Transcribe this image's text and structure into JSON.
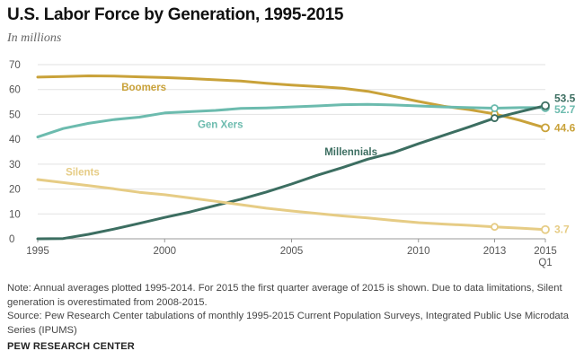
{
  "header": {
    "title": "U.S. Labor Force by Generation, 1995-2015",
    "subtitle": "In millions"
  },
  "chart_data": {
    "type": "line",
    "title": "U.S. Labor Force by Generation, 1995-2015",
    "subtitle": "In millions",
    "xlabel": "",
    "ylabel": "",
    "ylim": [
      0,
      70
    ],
    "xlim": [
      1995,
      2015
    ],
    "yticks": [
      0,
      10,
      20,
      30,
      40,
      50,
      60,
      70
    ],
    "xticks": [
      {
        "value": 1995,
        "label": "1995"
      },
      {
        "value": 2000,
        "label": "2000"
      },
      {
        "value": 2005,
        "label": "2005"
      },
      {
        "value": 2010,
        "label": "2010"
      },
      {
        "value": 2013,
        "label": "2013"
      },
      {
        "value": 2015,
        "label": "2015",
        "sublabel": "Q1"
      }
    ],
    "grid": true,
    "x": [
      1995,
      1996,
      1997,
      1998,
      1999,
      2000,
      2001,
      2002,
      2003,
      2004,
      2005,
      2006,
      2007,
      2008,
      2009,
      2010,
      2011,
      2012,
      2013,
      2014,
      2015
    ],
    "series": [
      {
        "name": "Boomers",
        "color": "#c9a23a",
        "values": [
          65.0,
          65.2,
          65.5,
          65.4,
          65.1,
          64.8,
          64.4,
          63.9,
          63.4,
          62.5,
          61.8,
          61.2,
          60.5,
          59.3,
          57.3,
          55.2,
          53.3,
          51.9,
          50.2,
          47.6,
          44.6
        ],
        "end_label": "44.6"
      },
      {
        "name": "Gen Xers",
        "color": "#6cbbae",
        "values": [
          40.9,
          44.3,
          46.4,
          47.9,
          48.9,
          50.6,
          51.1,
          51.6,
          52.4,
          52.6,
          53.0,
          53.4,
          53.9,
          54.0,
          53.8,
          53.4,
          53.0,
          52.7,
          52.5,
          52.7,
          52.7
        ],
        "end_label": "52.7"
      },
      {
        "name": "Millennials",
        "color": "#3c6e61",
        "values": [
          0,
          0.1,
          1.8,
          3.9,
          6.2,
          8.6,
          10.8,
          13.4,
          15.9,
          18.8,
          22.0,
          25.5,
          28.6,
          32.0,
          34.6,
          38.2,
          41.6,
          45.0,
          48.5,
          51.1,
          53.5
        ],
        "end_label": "53.5"
      },
      {
        "name": "Silents",
        "color": "#e6cc85",
        "values": [
          23.8,
          22.6,
          21.4,
          20.1,
          18.7,
          17.7,
          16.4,
          15.1,
          13.7,
          12.3,
          11.2,
          10.2,
          9.2,
          8.4,
          7.4,
          6.5,
          5.9,
          5.4,
          4.8,
          4.3,
          3.7
        ],
        "end_label": "3.7"
      }
    ],
    "markers_at_x": [
      2013,
      2015
    ]
  },
  "notes": {
    "note": "Note: Annual averages plotted 1995-2014. For 2015 the first quarter average of 2015 is shown. Due to data limitations, Silent generation is overestimated from 2008-2015.",
    "source": "Source: Pew Research Center tabulations of monthly 1995-2015 Current Population Surveys, Integrated Public Use Microdata Series (IPUMS)"
  },
  "brand": "PEW RESEARCH CENTER"
}
